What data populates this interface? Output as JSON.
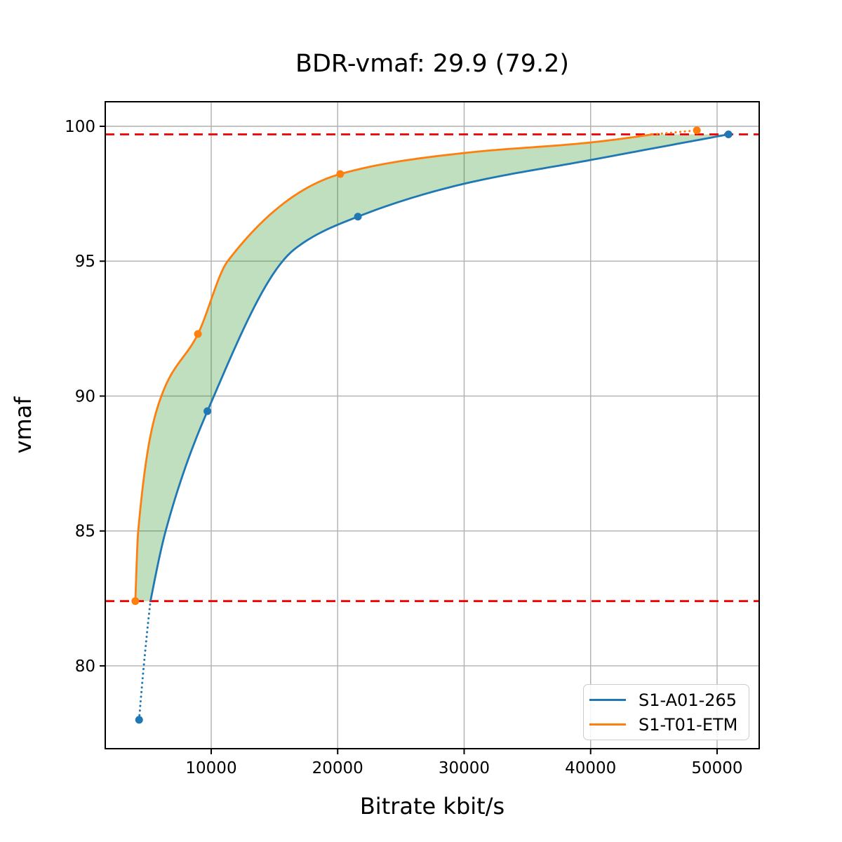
{
  "chart_data": {
    "type": "line",
    "title": "BDR-vmaf: 29.9 (79.2)",
    "xlabel": "Bitrate kbit/s",
    "ylabel": "vmaf",
    "xlim": [
      1623,
      53330
    ],
    "ylim": [
      76.93,
      100.91
    ],
    "xticks": [
      10000,
      20000,
      30000,
      40000,
      50000
    ],
    "yticks": [
      80,
      85,
      90,
      95,
      100
    ],
    "grid": true,
    "grid_color": "#b0b0b0",
    "legend_position": "lower right",
    "bd_bounds": {
      "upper_vmaf": 99.7,
      "lower_vmaf": 82.4,
      "color": "#ee0000",
      "style": "dashed"
    },
    "shaded_region": {
      "between": [
        "S1-T01-ETM",
        "S1-A01-265"
      ],
      "clip_vmaf": [
        82.4,
        99.7
      ],
      "color": "rgba(0,128,0,0.25)"
    },
    "series": [
      {
        "name": "S1-A01-265",
        "color": "#1f77b4",
        "markers": [
          [
            4300,
            78.0
          ],
          [
            9700,
            89.44
          ],
          [
            21600,
            96.65
          ],
          [
            50900,
            99.7
          ]
        ],
        "solid_waypoints": [
          [
            5200,
            82.4
          ],
          [
            6400,
            85.0
          ],
          [
            9700,
            89.44
          ],
          [
            16600,
            95.45
          ],
          [
            21600,
            96.65
          ],
          [
            30000,
            97.87
          ],
          [
            40000,
            98.75
          ],
          [
            50900,
            99.7
          ]
        ],
        "dotted_waypoints": [
          [
            4300,
            78.0
          ],
          [
            4670,
            80.0
          ],
          [
            5200,
            82.4
          ]
        ]
      },
      {
        "name": "S1-T01-ETM",
        "color": "#ff7f0e",
        "markers": [
          [
            4000,
            82.4
          ],
          [
            8950,
            92.3
          ],
          [
            20200,
            98.23
          ],
          [
            48400,
            99.85
          ]
        ],
        "solid_waypoints": [
          [
            4000,
            82.4
          ],
          [
            4230,
            85.0
          ],
          [
            6060,
            90.0
          ],
          [
            8950,
            92.3
          ],
          [
            11300,
            95.0
          ],
          [
            20200,
            98.23
          ],
          [
            30000,
            99.01
          ],
          [
            40000,
            99.4
          ],
          [
            44900,
            99.7
          ]
        ],
        "dotted_waypoints": [
          [
            44900,
            99.7
          ],
          [
            48400,
            99.85
          ]
        ]
      }
    ]
  }
}
